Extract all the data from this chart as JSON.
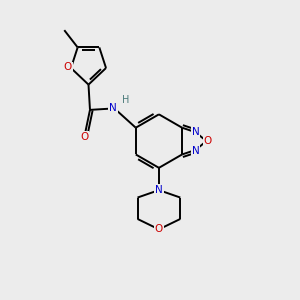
{
  "background_color": "#ececec",
  "atom_colors": {
    "C": "#000000",
    "N": "#0000cc",
    "O": "#cc0000",
    "H": "#4a7a7a"
  },
  "bond_color": "#000000",
  "bond_lw": 1.4,
  "fontsize": 7.5
}
